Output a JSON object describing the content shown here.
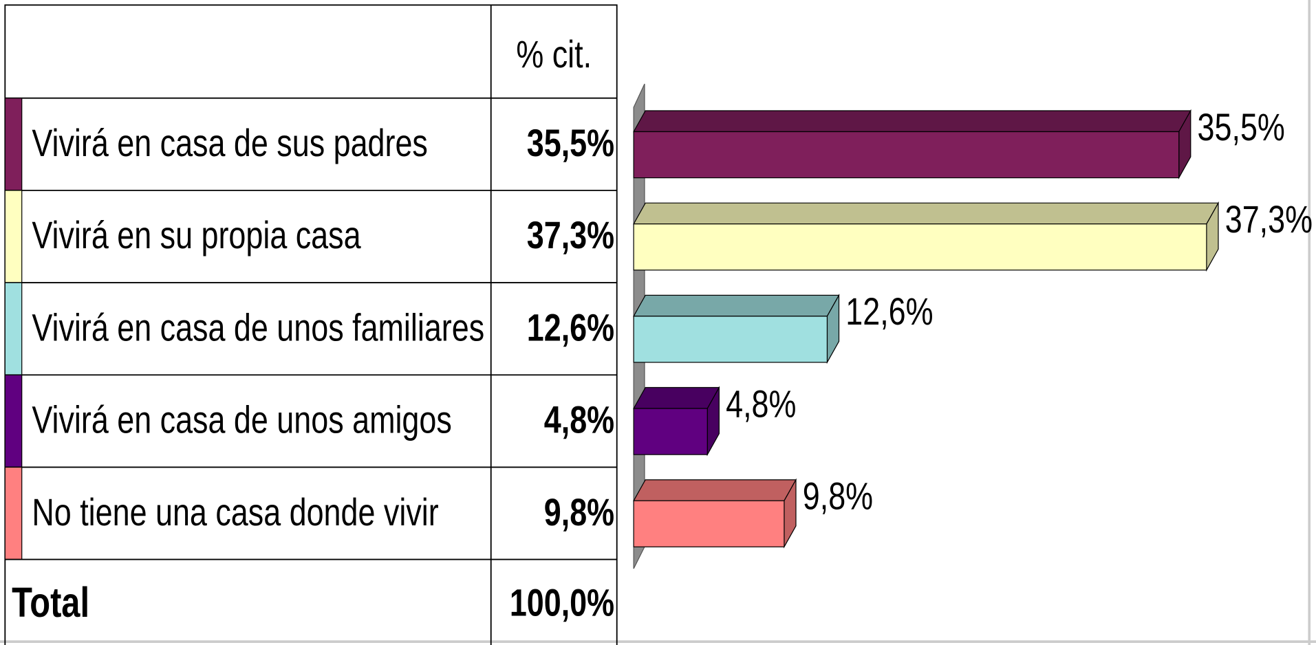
{
  "chart_data": {
    "type": "bar",
    "orientation": "horizontal",
    "column_header": "% cit.",
    "categories": [
      "Vivirá en casa de sus padres",
      "Vivirá en su propia casa",
      "Vivirá en casa de unos familiares",
      "Vivirá en casa de unos amigos",
      "No tiene una casa donde vivir"
    ],
    "values": [
      35.5,
      37.3,
      12.6,
      4.8,
      9.8
    ],
    "value_labels": [
      "35,5%",
      "37,3%",
      "12,6%",
      "4,8%",
      "9,8%"
    ],
    "colors": [
      "#7f1f5b",
      "#ffffc0",
      "#a0e0e0",
      "#600080",
      "#ff8080"
    ],
    "top_colors": [
      "#5f1746",
      "#c0c090",
      "#78a8a8",
      "#480060",
      "#c06060"
    ],
    "total_label": "Total",
    "total_value": "100,0%",
    "xlim": [
      0,
      40
    ]
  }
}
